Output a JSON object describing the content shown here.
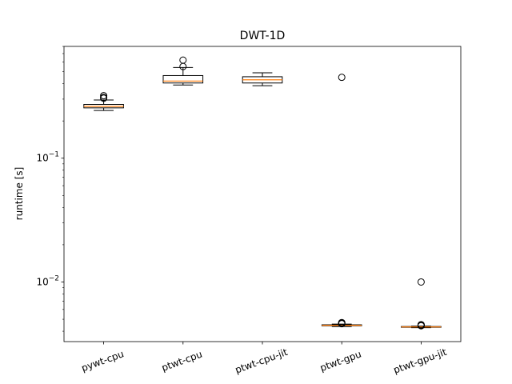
{
  "chart_data": {
    "type": "boxplot",
    "title": "DWT-1D",
    "xlabel": "",
    "ylabel": "runtime [s]",
    "yscale": "log",
    "ylim": [
      0.0033,
      0.8
    ],
    "y_ticks": [
      {
        "value": 0.01,
        "base": "10",
        "exp": "−2"
      },
      {
        "value": 0.1,
        "base": "10",
        "exp": "−1"
      }
    ],
    "categories": [
      "pywt-cpu",
      "ptwt-cpu",
      "ptwt-cpu-jit",
      "ptwt-gpu",
      "ptwt-gpu-jit"
    ],
    "boxes": [
      {
        "q1": 0.255,
        "median": 0.262,
        "q3": 0.272,
        "whisker_low": 0.243,
        "whisker_high": 0.295,
        "outliers": [
          0.305,
          0.31,
          0.32
        ]
      },
      {
        "q1": 0.405,
        "median": 0.42,
        "q3": 0.465,
        "whisker_low": 0.39,
        "whisker_high": 0.54,
        "outliers": [
          0.55,
          0.62
        ]
      },
      {
        "q1": 0.405,
        "median": 0.43,
        "q3": 0.455,
        "whisker_low": 0.385,
        "whisker_high": 0.49,
        "outliers": []
      },
      {
        "q1": 0.00443,
        "median": 0.00447,
        "q3": 0.00451,
        "whisker_low": 0.00437,
        "whisker_high": 0.00457,
        "outliers": [
          0.0046,
          0.00465,
          0.00468,
          0.0047,
          0.45
        ]
      },
      {
        "q1": 0.00431,
        "median": 0.00434,
        "q3": 0.00437,
        "whisker_low": 0.00427,
        "whisker_high": 0.0044,
        "outliers": [
          0.00443,
          0.00447,
          0.0045,
          0.00452,
          0.01
        ]
      }
    ],
    "colors": {
      "box": "#000000",
      "median": "#ff7f0e",
      "background": "#ffffff"
    },
    "grid": false,
    "legend": "none"
  }
}
